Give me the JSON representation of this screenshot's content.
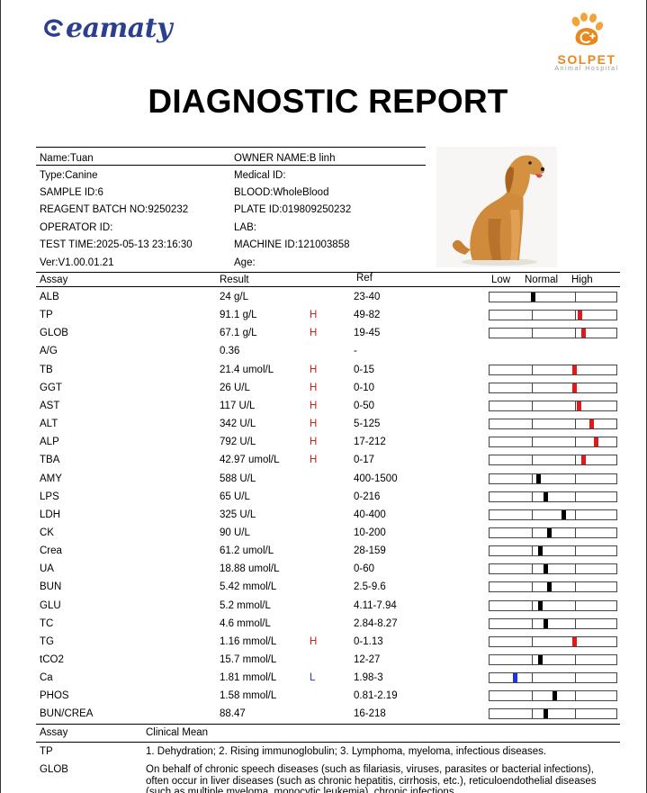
{
  "header": {
    "brand_logo_text": "eamaty",
    "hospital_name": "SOLPET",
    "hospital_sub": "Animal Hospital",
    "title": "DIAGNOSTIC REPORT"
  },
  "info": {
    "left": [
      "Name:Tuan",
      "Type:Canine",
      "SAMPLE ID:6",
      "REAGENT BATCH NO:9250232",
      "OPERATOR ID:",
      "TEST TIME:2025-05-13 23:16:30",
      "Ver:V1.00.01.21"
    ],
    "right": [
      "OWNER NAME:B linh",
      "Medical ID:",
      "BLOOD:WholeBlood",
      "PLATE ID:019809250232",
      "LAB:",
      "MACHINE ID:121003858",
      "Age:"
    ]
  },
  "table_headers": {
    "assay": "Assay",
    "result": "Result",
    "ref": "Ref",
    "low": "Low",
    "normal": "Normal",
    "high": "High"
  },
  "colors": {
    "high": "#e0191b",
    "low": "#1936e0",
    "normal": "#000000"
  },
  "rows": [
    {
      "assay": "ALB",
      "result": "24 g/L",
      "flag": "",
      "ref": "23-40",
      "level": 0.34
    },
    {
      "assay": "TP",
      "result": "91.1 g/L",
      "flag": "H",
      "ref": "49-82",
      "level": 0.71
    },
    {
      "assay": "GLOB",
      "result": "67.1 g/L",
      "flag": "H",
      "ref": "19-45",
      "level": 0.74
    },
    {
      "assay": "A/G",
      "result": "0.36",
      "flag": "",
      "ref": "-",
      "level": null
    },
    {
      "assay": "TB",
      "result": "21.4 umol/L",
      "flag": "H",
      "ref": "0-15",
      "level": 0.67
    },
    {
      "assay": "GGT",
      "result": "26 U/L",
      "flag": "H",
      "ref": "0-10",
      "level": 0.67
    },
    {
      "assay": "AST",
      "result": "117 U/L",
      "flag": "H",
      "ref": "0-50",
      "level": 0.7
    },
    {
      "assay": "ALT",
      "result": "342 U/L",
      "flag": "H",
      "ref": "5-125",
      "level": 0.8
    },
    {
      "assay": "ALP",
      "result": "792 U/L",
      "flag": "H",
      "ref": "17-212",
      "level": 0.84
    },
    {
      "assay": "TBA",
      "result": "42.97 umol/L",
      "flag": "H",
      "ref": "0-17",
      "level": 0.74
    },
    {
      "assay": "AMY",
      "result": "588 U/L",
      "flag": "",
      "ref": "400-1500",
      "level": 0.38
    },
    {
      "assay": "LPS",
      "result": "65 U/L",
      "flag": "",
      "ref": "0-216",
      "level": 0.44
    },
    {
      "assay": "LDH",
      "result": "325 U/L",
      "flag": "",
      "ref": "40-400",
      "level": 0.58
    },
    {
      "assay": "CK",
      "result": "90 U/L",
      "flag": "",
      "ref": "10-200",
      "level": 0.47
    },
    {
      "assay": "Crea",
      "result": "61.2 umol/L",
      "flag": "",
      "ref": "28-159",
      "level": 0.4
    },
    {
      "assay": "UA",
      "result": "18.88 umol/L",
      "flag": "",
      "ref": "0-60",
      "level": 0.44
    },
    {
      "assay": "BUN",
      "result": "5.42 mmol/L",
      "flag": "",
      "ref": "2.5-9.6",
      "level": 0.47
    },
    {
      "assay": "GLU",
      "result": "5.2 mmol/L",
      "flag": "",
      "ref": "4.11-7.94",
      "level": 0.4
    },
    {
      "assay": "TC",
      "result": "4.6 mmol/L",
      "flag": "",
      "ref": "2.84-8.27",
      "level": 0.44
    },
    {
      "assay": "TG",
      "result": "1.16 mmol/L",
      "flag": "H",
      "ref": "0-1.13",
      "level": 0.67
    },
    {
      "assay": "tCO2",
      "result": "15.7 mmol/L",
      "flag": "",
      "ref": "12-27",
      "level": 0.4
    },
    {
      "assay": "Ca",
      "result": "1.81 mmol/L",
      "flag": "L",
      "ref": "1.98-3",
      "level": 0.2
    },
    {
      "assay": "PHOS",
      "result": "1.58 mmol/L",
      "flag": "",
      "ref": "0.81-2.19",
      "level": 0.51
    },
    {
      "assay": "BUN/CREA",
      "result": "88.47",
      "flag": "",
      "ref": "16-218",
      "level": 0.44
    }
  ],
  "clinical": {
    "header_assay": "Assay",
    "header_mean": "Clinical Mean",
    "items": [
      {
        "assay": "TP",
        "text": "1. Dehydration; 2. Rising immunoglobulin; 3. Lymphoma, myeloma, infectious diseases."
      },
      {
        "assay": "GLOB",
        "text": "On behalf of chronic speech diseases (such as filariasis, viruses, parasites or bacterial infections), often occur in liver diseases (such as chronic hepatitis, cirrhosis, etc.), reticuloendothelial diseases (such as multiple myeloma, monocytic leukemia), chronic infections"
      }
    ]
  }
}
